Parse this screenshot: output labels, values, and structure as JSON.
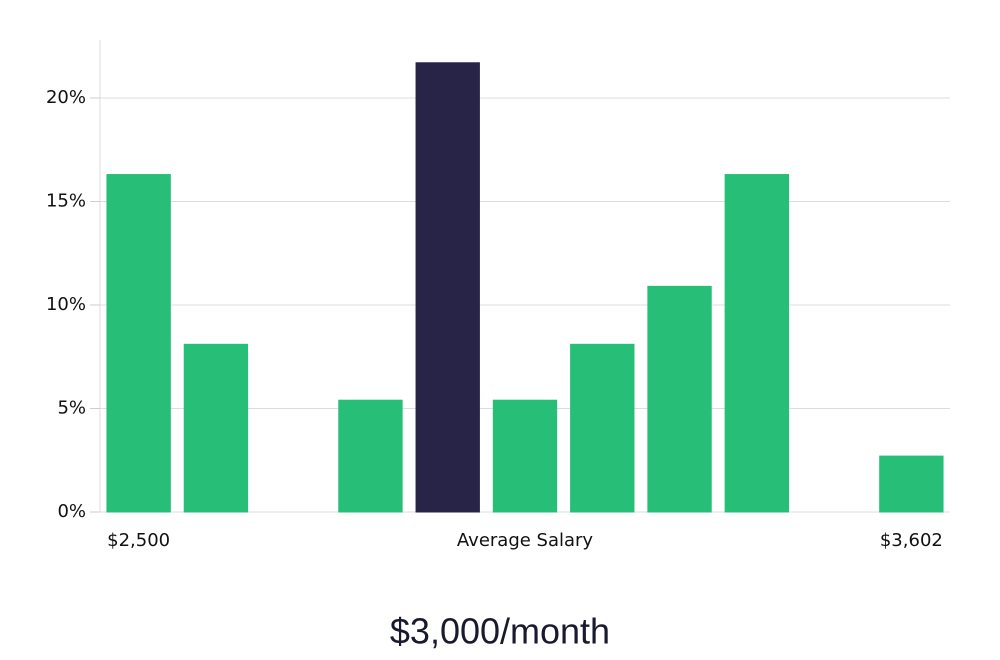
{
  "chart_data": {
    "type": "bar",
    "categories": [
      "$2,500",
      null,
      null,
      null,
      null,
      "Average Salary",
      null,
      null,
      null,
      null,
      "$3,602"
    ],
    "values": [
      16.3,
      8.1,
      0,
      5.4,
      21.7,
      5.4,
      8.1,
      10.9,
      16.3,
      0,
      2.7
    ],
    "colors": [
      "#27bf77",
      "#27bf77",
      "#27bf77",
      "#27bf77",
      "#272448",
      "#27bf77",
      "#27bf77",
      "#27bf77",
      "#27bf77",
      "#27bf77",
      "#27bf77"
    ],
    "ylim": [
      0,
      22.8
    ],
    "yticks": [
      {
        "value": 0,
        "label": "0%"
      },
      {
        "value": 5,
        "label": "5%"
      },
      {
        "value": 10,
        "label": "10%"
      },
      {
        "value": 15,
        "label": "15%"
      },
      {
        "value": 20,
        "label": "20%"
      }
    ],
    "grid": true,
    "caption": "$3,000/month"
  }
}
